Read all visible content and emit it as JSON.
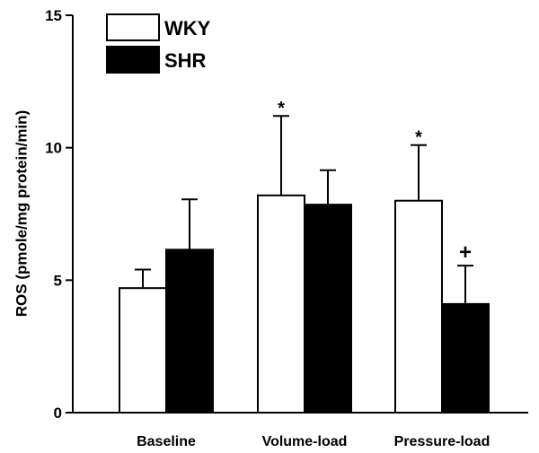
{
  "chart_data": {
    "type": "bar",
    "title": "",
    "xlabel": "",
    "ylabel": "ROS (pmole/mg protein/min)",
    "ylim": [
      0,
      15
    ],
    "yticks": [
      0,
      5,
      10,
      15
    ],
    "categories": [
      "Baseline",
      "Volume-load",
      "Pressure-load"
    ],
    "series": [
      {
        "name": "WKY",
        "color": "#ffffff",
        "values": [
          4.7,
          8.2,
          8.0
        ],
        "errors": [
          0.7,
          3.0,
          2.1
        ],
        "markers": [
          "",
          "*",
          "*"
        ]
      },
      {
        "name": "SHR",
        "color": "#000000",
        "values": [
          6.15,
          7.85,
          4.1
        ],
        "errors": [
          1.9,
          1.3,
          1.45
        ],
        "markers": [
          "",
          "",
          "+"
        ]
      }
    ],
    "legend": "top-left",
    "grid": false
  }
}
